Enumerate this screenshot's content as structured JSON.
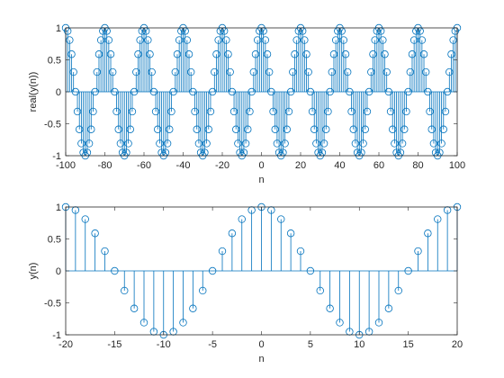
{
  "colors": {
    "stem": "#0072BD",
    "axes": "#262626",
    "background": "#ffffff"
  },
  "chart_data": [
    {
      "type": "stem",
      "xlabel": "n",
      "ylabel": "real(y(n))",
      "xlim": [
        -100,
        100
      ],
      "ylim": [
        -1,
        1
      ],
      "xticks": [
        -100,
        -80,
        -60,
        -40,
        -20,
        0,
        20,
        40,
        60,
        80,
        100
      ],
      "yticks": [
        -1,
        -0.5,
        0,
        0.5,
        1
      ],
      "xtick_labels": [
        "-100",
        "-80",
        "-60",
        "-40",
        "-20",
        "0",
        "20",
        "40",
        "60",
        "80",
        "100"
      ],
      "ytick_labels": [
        "-1",
        "-0.5",
        "0",
        "0.5",
        "1"
      ],
      "series": [
        {
          "x": [
            -100,
            -99,
            -98,
            -97,
            -96,
            -95,
            -94,
            -93,
            -92,
            -91,
            -90,
            -89,
            -88,
            -87,
            -86,
            -85,
            -84,
            -83,
            -82,
            -81,
            -80,
            -79,
            -78,
            -77,
            -76,
            -75,
            -74,
            -73,
            -72,
            -71,
            -70,
            -69,
            -68,
            -67,
            -66,
            -65,
            -64,
            -63,
            -62,
            -61,
            -60,
            -59,
            -58,
            -57,
            -56,
            -55,
            -54,
            -53,
            -52,
            -51,
            -50,
            -49,
            -48,
            -47,
            -46,
            -45,
            -44,
            -43,
            -42,
            -41,
            -40,
            -39,
            -38,
            -37,
            -36,
            -35,
            -34,
            -33,
            -32,
            -31,
            -30,
            -29,
            -28,
            -27,
            -26,
            -25,
            -24,
            -23,
            -22,
            -21,
            -20,
            -19,
            -18,
            -17,
            -16,
            -15,
            -14,
            -13,
            -12,
            -11,
            -10,
            -9,
            -8,
            -7,
            -6,
            -5,
            -4,
            -3,
            -2,
            -1,
            0,
            1,
            2,
            3,
            4,
            5,
            6,
            7,
            8,
            9,
            10,
            11,
            12,
            13,
            14,
            15,
            16,
            17,
            18,
            19,
            20,
            21,
            22,
            23,
            24,
            25,
            26,
            27,
            28,
            29,
            30,
            31,
            32,
            33,
            34,
            35,
            36,
            37,
            38,
            39,
            40,
            41,
            42,
            43,
            44,
            45,
            46,
            47,
            48,
            49,
            50,
            51,
            52,
            53,
            54,
            55,
            56,
            57,
            58,
            59,
            60,
            61,
            62,
            63,
            64,
            65,
            66,
            67,
            68,
            69,
            70,
            71,
            72,
            73,
            74,
            75,
            76,
            77,
            78,
            79,
            80,
            81,
            82,
            83,
            84,
            85,
            86,
            87,
            88,
            89,
            90,
            91,
            92,
            93,
            94,
            95,
            96,
            97,
            98,
            99,
            100
          ],
          "y": [
            1,
            0.951,
            0.809,
            0.588,
            0.309,
            0,
            -0.309,
            -0.588,
            -0.809,
            -0.951,
            -1,
            -0.951,
            -0.809,
            -0.588,
            -0.309,
            0,
            0.309,
            0.588,
            0.809,
            0.951,
            1,
            0.951,
            0.809,
            0.588,
            0.309,
            0,
            -0.309,
            -0.588,
            -0.809,
            -0.951,
            -1,
            -0.951,
            -0.809,
            -0.588,
            -0.309,
            0,
            0.309,
            0.588,
            0.809,
            0.951,
            1,
            0.951,
            0.809,
            0.588,
            0.309,
            0,
            -0.309,
            -0.588,
            -0.809,
            -0.951,
            -1,
            -0.951,
            -0.809,
            -0.588,
            -0.309,
            0,
            0.309,
            0.588,
            0.809,
            0.951,
            1,
            0.951,
            0.809,
            0.588,
            0.309,
            0,
            -0.309,
            -0.588,
            -0.809,
            -0.951,
            -1,
            -0.951,
            -0.809,
            -0.588,
            -0.309,
            0,
            0.309,
            0.588,
            0.809,
            0.951,
            1,
            0.951,
            0.809,
            0.588,
            0.309,
            0,
            -0.309,
            -0.588,
            -0.809,
            -0.951,
            -1,
            -0.951,
            -0.809,
            -0.588,
            -0.309,
            0,
            0.309,
            0.588,
            0.809,
            0.951,
            1,
            0.951,
            0.809,
            0.588,
            0.309,
            0,
            -0.309,
            -0.588,
            -0.809,
            -0.951,
            -1,
            -0.951,
            -0.809,
            -0.588,
            -0.309,
            0,
            0.309,
            0.588,
            0.809,
            0.951,
            1,
            0.951,
            0.809,
            0.588,
            0.309,
            0,
            -0.309,
            -0.588,
            -0.809,
            -0.951,
            -1,
            -0.951,
            -0.809,
            -0.588,
            -0.309,
            0,
            0.309,
            0.588,
            0.809,
            0.951,
            1,
            0.951,
            0.809,
            0.588,
            0.309,
            0,
            -0.309,
            -0.588,
            -0.809,
            -0.951,
            -1,
            -0.951,
            -0.809,
            -0.588,
            -0.309,
            0,
            0.309,
            0.588,
            0.809,
            0.951,
            1,
            0.951,
            0.809,
            0.588,
            0.309,
            0,
            -0.309,
            -0.588,
            -0.809,
            -0.951,
            -1,
            -0.951,
            -0.809,
            -0.588,
            -0.309,
            0,
            0.309,
            0.588,
            0.809,
            0.951,
            1,
            0.951,
            0.809,
            0.588,
            0.309,
            0,
            -0.309,
            -0.588,
            -0.809,
            -0.951,
            -1,
            -0.951,
            -0.809,
            -0.588,
            -0.309,
            0,
            0.309,
            0.588,
            0.809,
            0.951,
            1
          ]
        }
      ]
    },
    {
      "type": "stem",
      "xlabel": "n",
      "ylabel": "y(n)",
      "xlim": [
        -20,
        20
      ],
      "ylim": [
        -1,
        1
      ],
      "xticks": [
        -20,
        -15,
        -10,
        -5,
        0,
        5,
        10,
        15,
        20
      ],
      "yticks": [
        -1,
        -0.5,
        0,
        0.5,
        1
      ],
      "xtick_labels": [
        "-20",
        "-15",
        "-10",
        "-5",
        "0",
        "5",
        "10",
        "15",
        "20"
      ],
      "ytick_labels": [
        "-1",
        "-0.5",
        "0",
        "0.5",
        "1"
      ],
      "series": [
        {
          "x": [
            -20,
            -19,
            -18,
            -17,
            -16,
            -15,
            -14,
            -13,
            -12,
            -11,
            -10,
            -9,
            -8,
            -7,
            -6,
            -5,
            -4,
            -3,
            -2,
            -1,
            0,
            1,
            2,
            3,
            4,
            5,
            6,
            7,
            8,
            9,
            10,
            11,
            12,
            13,
            14,
            15,
            16,
            17,
            18,
            19,
            20
          ],
          "y": [
            1,
            0.951,
            0.809,
            0.588,
            0.309,
            0,
            -0.309,
            -0.588,
            -0.809,
            -0.951,
            -1,
            -0.951,
            -0.809,
            -0.588,
            -0.309,
            0,
            0.309,
            0.588,
            0.809,
            0.951,
            1,
            0.951,
            0.809,
            0.588,
            0.309,
            0,
            -0.309,
            -0.588,
            -0.809,
            -0.951,
            -1,
            -0.951,
            -0.809,
            -0.588,
            -0.309,
            0,
            0.309,
            0.588,
            0.809,
            0.951,
            1
          ]
        }
      ]
    }
  ]
}
